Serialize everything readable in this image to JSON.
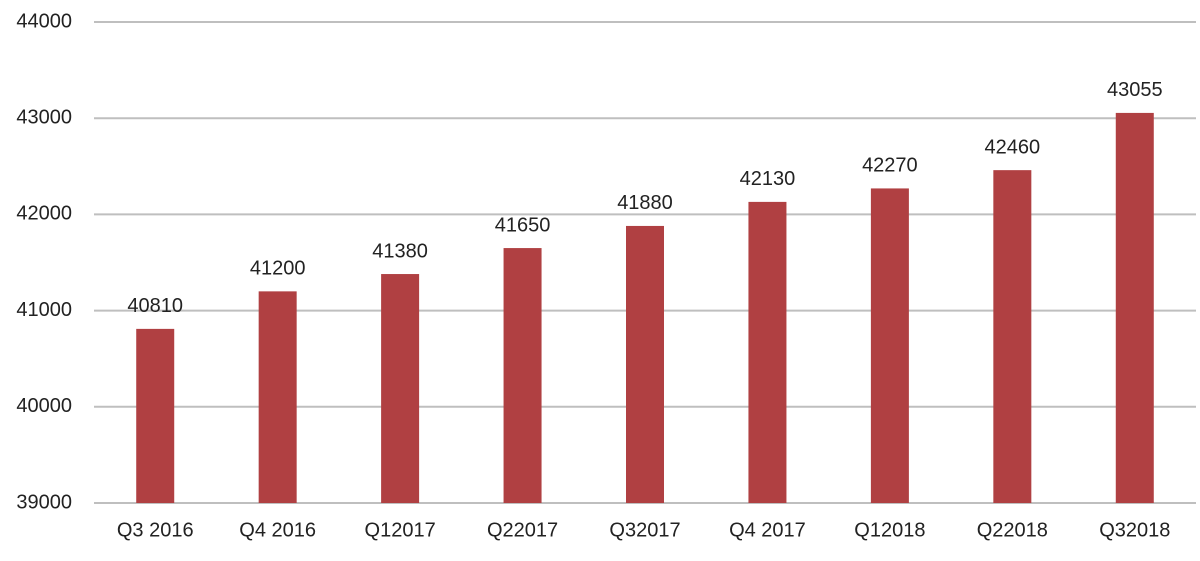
{
  "chart_data": {
    "type": "bar",
    "categories": [
      "Q3 2016",
      "Q4 2016",
      "Q12017",
      "Q22017",
      "Q32017",
      "Q4 2017",
      "Q12018",
      "Q22018",
      "Q32018"
    ],
    "values": [
      40810,
      41200,
      41380,
      41650,
      41880,
      42130,
      42270,
      42460,
      43055
    ],
    "color": "#b04042",
    "ylim": [
      39000,
      44000
    ],
    "yticks": [
      39000,
      40000,
      41000,
      42000,
      43000,
      44000
    ],
    "grid": true
  }
}
